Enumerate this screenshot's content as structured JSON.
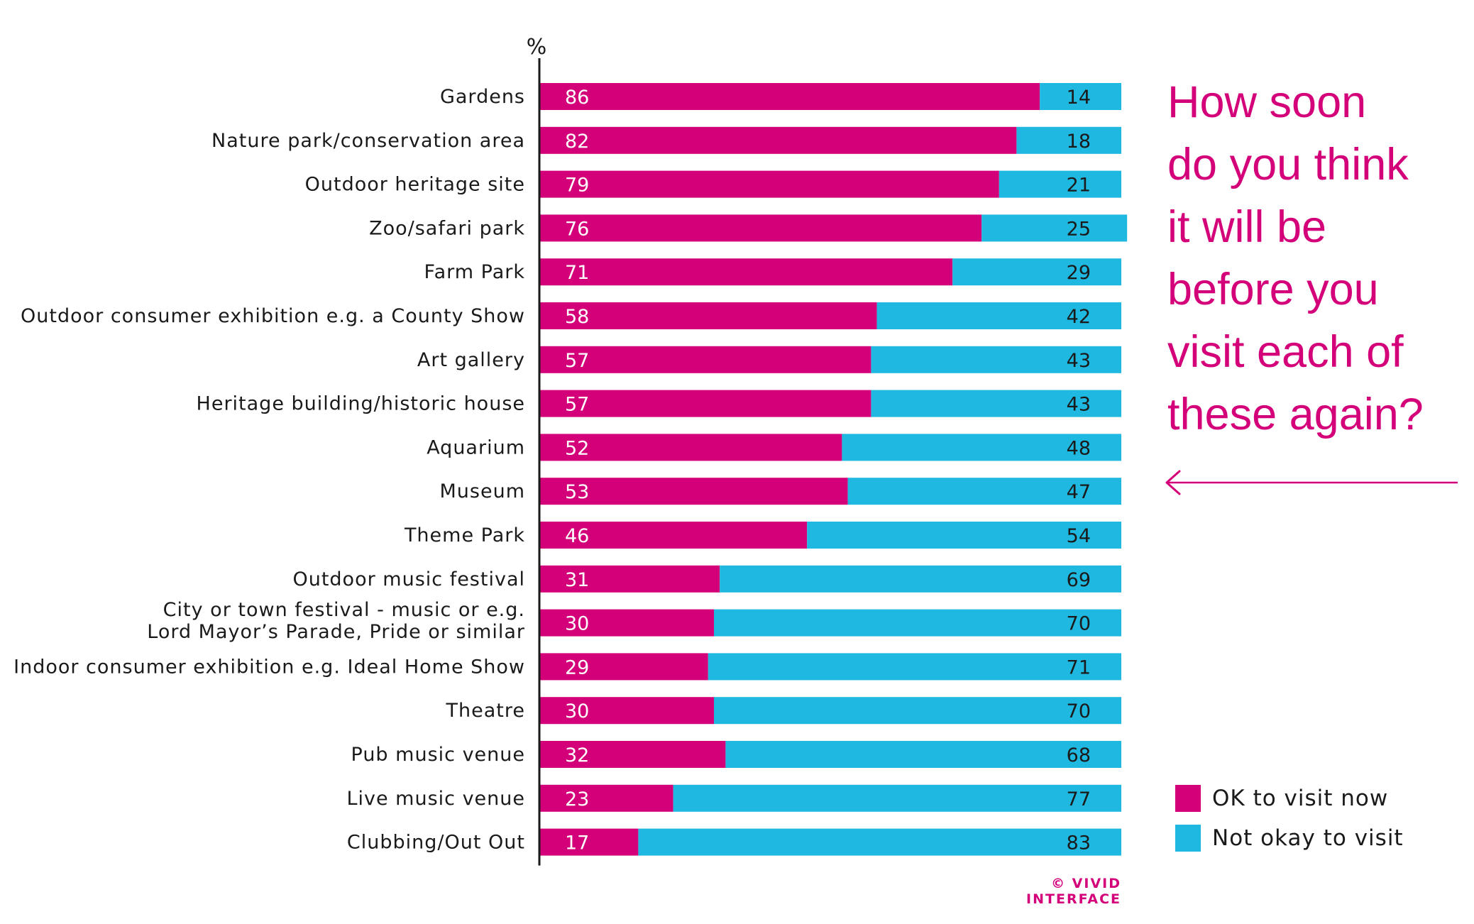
{
  "chart_data": {
    "type": "bar",
    "orientation": "horizontal",
    "stacked": true,
    "unit_label": "%",
    "title": "How soon do you think it will be before you visit each of these again?",
    "title_lines": [
      "How soon",
      "do you think",
      "it will be",
      "before you",
      "visit each of",
      "these again?"
    ],
    "categories": [
      "Gardens",
      "Nature park/conservation area",
      "Outdoor heritage site",
      "Zoo/safari park",
      "Farm Park",
      "Outdoor consumer exhibition e.g. a County Show",
      "Art gallery",
      "Heritage building/historic house",
      "Aquarium",
      "Museum",
      "Theme Park",
      "Outdoor music festival",
      "City or town festival - music or e.g. Lord Mayor’s Parade, Pride or similar",
      "Indoor consumer exhibition e.g. Ideal Home Show",
      "Theatre",
      "Pub music venue",
      "Live music venue",
      "Clubbing/Out Out"
    ],
    "category_lines": [
      [
        "Gardens"
      ],
      [
        "Nature park/conservation area"
      ],
      [
        "Outdoor heritage site"
      ],
      [
        "Zoo/safari park"
      ],
      [
        "Farm Park"
      ],
      [
        "Outdoor consumer exhibition e.g. a County Show"
      ],
      [
        "Art gallery"
      ],
      [
        "Heritage building/historic house"
      ],
      [
        "Aquarium"
      ],
      [
        "Museum"
      ],
      [
        "Theme Park"
      ],
      [
        "Outdoor music festival"
      ],
      [
        "City or town festival - music or e.g.",
        "Lord Mayor’s Parade, Pride or similar"
      ],
      [
        "Indoor consumer exhibition e.g. Ideal Home Show"
      ],
      [
        "Theatre"
      ],
      [
        "Pub music venue"
      ],
      [
        "Live music venue"
      ],
      [
        "Clubbing/Out Out"
      ]
    ],
    "series": [
      {
        "name": "OK to visit now",
        "color": "#d4007a",
        "values": [
          86,
          82,
          79,
          76,
          71,
          58,
          57,
          57,
          52,
          53,
          46,
          31,
          30,
          29,
          30,
          32,
          23,
          17
        ]
      },
      {
        "name": "Not okay to visit",
        "color": "#1fb8e0",
        "values": [
          14,
          18,
          21,
          25,
          29,
          42,
          43,
          43,
          48,
          47,
          54,
          69,
          70,
          71,
          70,
          68,
          77,
          83
        ]
      }
    ],
    "xlim": [
      0,
      100
    ],
    "legend_position": "bottom-right",
    "grid": false
  },
  "credit": "© VIVID INTERFACE",
  "colors": {
    "ok": "#d4007a",
    "not_ok": "#1fb8e0",
    "axis": "#1a1a1a"
  },
  "decorations": {
    "arrow_icon": "left-arrow"
  }
}
